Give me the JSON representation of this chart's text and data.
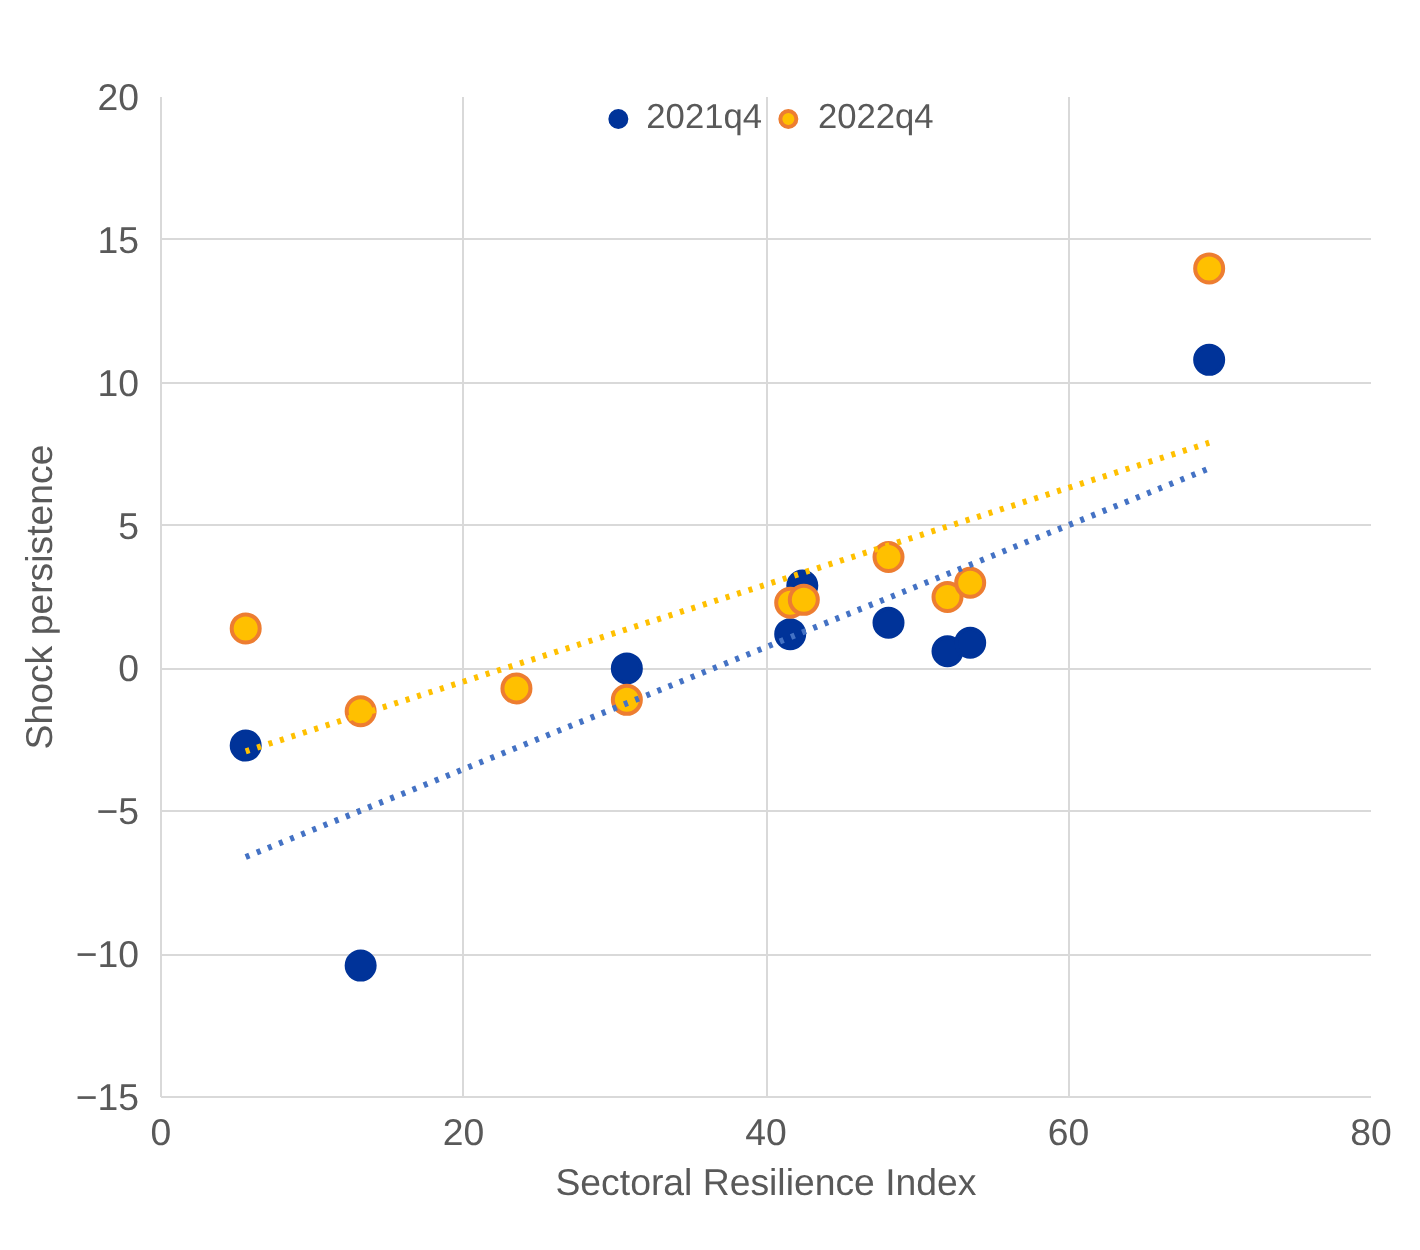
{
  "chart_data": {
    "type": "scatter",
    "xlabel": "Sectoral Resilience Index",
    "ylabel": "Shock persistence",
    "xlim": [
      0,
      80
    ],
    "ylim": [
      -15,
      20
    ],
    "xticks": [
      0,
      20,
      40,
      60,
      80
    ],
    "yticks": [
      -15,
      -10,
      -5,
      0,
      5,
      10,
      15,
      20
    ],
    "grid": true,
    "legend": "top",
    "marker": "circle",
    "series": [
      {
        "name": "2021q4",
        "color": "#003399",
        "x": [
          5.6,
          13.2,
          30.8,
          41.6,
          42.4,
          48.1,
          52.0,
          53.5,
          69.3
        ],
        "values": [
          -2.7,
          -10.4,
          0,
          1.2,
          2.9,
          1.6,
          0.6,
          0.9,
          10.8
        ]
      },
      {
        "name": "2022q4",
        "color": "#ffc000",
        "x": [
          5.6,
          13.2,
          23.5,
          30.8,
          41.6,
          42.5,
          48.1,
          52.0,
          53.5,
          69.3
        ],
        "values": [
          1.4,
          -1.5,
          -0.7,
          -1.1,
          2.3,
          2.4,
          3.9,
          2.5,
          3.0,
          14.0
        ]
      },
      {
        "type": "line",
        "line_style": "dotted",
        "marker": "none",
        "color": "#4472c4",
        "x": [
          5.6,
          69.3
        ],
        "values": [
          -6.6,
          7.0
        ]
      },
      {
        "type": "line",
        "line_style": "dotted",
        "marker": "none",
        "color": "#ffc000",
        "x": [
          5.6,
          69.3
        ],
        "values": [
          -2.9,
          7.9
        ]
      }
    ]
  }
}
